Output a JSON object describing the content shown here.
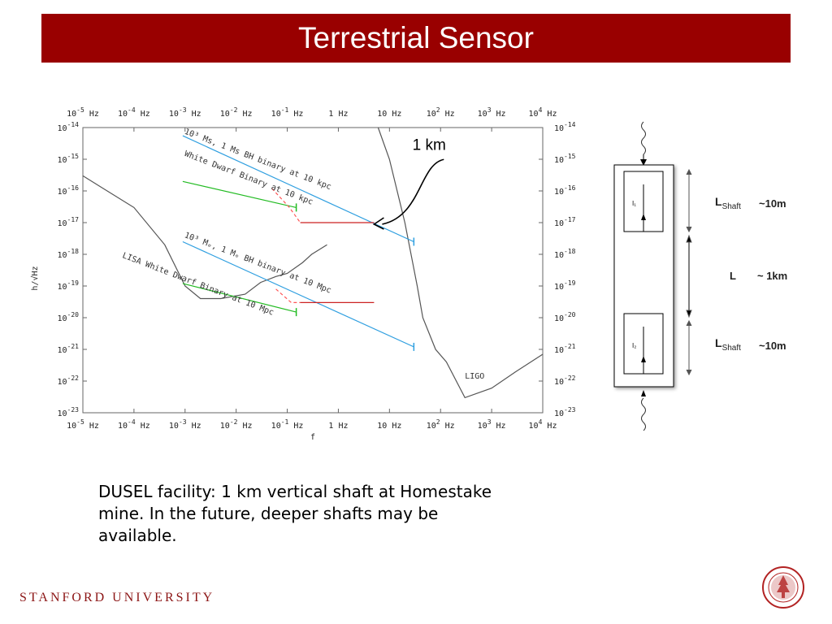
{
  "slide": {
    "title": "Terrestrial Sensor",
    "caption_line1": "DUSEL facility:  1 km vertical shaft at Homestake",
    "caption_line2": "mine.  In the future, deeper shafts may be",
    "caption_line3": "available.",
    "footer": "STANFORD UNIVERSITY",
    "brand_color": "#990000"
  },
  "chart_data": {
    "type": "line",
    "xlabel": "f",
    "ylabel": "h/√Hz",
    "xscale": "log",
    "yscale": "log",
    "xlim": [
      1e-05,
      10000.0
    ],
    "ylim": [
      1e-23,
      1e-14
    ],
    "x_ticks": [
      {
        "base": "10",
        "exp": "-5",
        "unit": "Hz"
      },
      {
        "base": "10",
        "exp": "-4",
        "unit": "Hz"
      },
      {
        "base": "10",
        "exp": "-3",
        "unit": "Hz"
      },
      {
        "base": "10",
        "exp": "-2",
        "unit": "Hz"
      },
      {
        "base": "10",
        "exp": "-1",
        "unit": "Hz"
      },
      {
        "base": "1",
        "exp": "",
        "unit": "Hz"
      },
      {
        "base": "10",
        "exp": "",
        "unit": "Hz"
      },
      {
        "base": "10",
        "exp": "2",
        "unit": "Hz"
      },
      {
        "base": "10",
        "exp": "3",
        "unit": "Hz"
      },
      {
        "base": "10",
        "exp": "4",
        "unit": "Hz"
      }
    ],
    "y_ticks": [
      {
        "base": "10",
        "exp": "-14"
      },
      {
        "base": "10",
        "exp": "-15"
      },
      {
        "base": "10",
        "exp": "-16"
      },
      {
        "base": "10",
        "exp": "-17"
      },
      {
        "base": "10",
        "exp": "-18"
      },
      {
        "base": "10",
        "exp": "-19"
      },
      {
        "base": "10",
        "exp": "-20"
      },
      {
        "base": "10",
        "exp": "-21"
      },
      {
        "base": "10",
        "exp": "-22"
      },
      {
        "base": "10",
        "exp": "-23"
      }
    ],
    "series": [
      {
        "name": "LISA",
        "color": "#555555",
        "style": "solid",
        "x": [
          1e-05,
          0.0001,
          0.0004,
          0.001,
          0.002,
          0.005,
          0.015,
          0.03,
          0.06,
          0.1,
          0.2,
          0.3,
          0.6
        ],
        "y": [
          3e-16,
          3e-17,
          2e-18,
          1e-19,
          4e-20,
          4e-20,
          5.5e-20,
          1.3e-19,
          2e-19,
          2.5e-19,
          5.5e-19,
          1e-18,
          2e-18
        ]
      },
      {
        "name": "LIGO",
        "color": "#555555",
        "style": "solid",
        "x": [
          6,
          10,
          20,
          35,
          45,
          80,
          130,
          300,
          1000,
          3000,
          10000
        ],
        "y": [
          1e-14,
          1e-15,
          1e-17,
          1e-19,
          1e-20,
          1e-21,
          4e-22,
          3e-23,
          6e-23,
          2e-22,
          7e-22
        ]
      },
      {
        "name": "",
        "color": "#2f9fe0",
        "style": "solid",
        "x": [
          0.0009,
          30
        ],
        "y": [
          5.5e-15,
          2.5e-18
        ]
      },
      {
        "name": "",
        "color": "#2f9fe0",
        "style": "solid",
        "x": [
          0.0009,
          30
        ],
        "y": [
          2.5e-18,
          1.2e-21
        ]
      },
      {
        "name": "",
        "color": "#22bb22",
        "style": "solid",
        "x": [
          0.0009,
          0.15
        ],
        "y": [
          2e-16,
          3e-17
        ]
      },
      {
        "name": "",
        "color": "#22bb22",
        "style": "solid",
        "x": [
          0.0009,
          0.15
        ],
        "y": [
          1.2e-19,
          1.5e-20
        ]
      },
      {
        "name": "",
        "color": "#ff5555",
        "style": "dashed",
        "x": [
          0.05,
          0.11,
          0.18
        ],
        "y": [
          1.2e-16,
          3e-17,
          1e-17
        ]
      },
      {
        "name": "",
        "color": "#cc2222",
        "style": "solid",
        "x": [
          0.18,
          5
        ],
        "y": [
          1e-17,
          1e-17
        ]
      },
      {
        "name": "",
        "color": "#ff5555",
        "style": "dashed",
        "x": [
          0.06,
          0.12,
          0.18
        ],
        "y": [
          8e-20,
          3e-20,
          3e-20
        ]
      },
      {
        "name": "",
        "color": "#cc2222",
        "style": "solid",
        "x": [
          0.18,
          5
        ],
        "y": [
          3e-20,
          3e-20
        ]
      }
    ],
    "annotations": [
      {
        "text": "10³ Ms, 1 Ms BH binary at 10 kpc",
        "x": 0.00095,
        "y": 6.5e-15,
        "color": "#333333"
      },
      {
        "text": "White Dwarf Binary at 10 kpc",
        "x": 0.00095,
        "y": 1.3e-15,
        "color": "#333333"
      },
      {
        "text": "10³ Mₑ, 1 Mₑ BH binary at 10 Mpc",
        "x": 0.00095,
        "y": 3.5e-18,
        "color": "#333333"
      },
      {
        "text": "LISA White Dwarf Binary at 10 Mpc",
        "x": 5.8e-05,
        "y": 8e-19,
        "color": "#333333"
      },
      {
        "text": "LIGO",
        "x": 300,
        "y": 1.2e-22,
        "color": "#333333"
      }
    ],
    "callout": {
      "text": "1 km",
      "x": 60,
      "y": 2e-15,
      "arrow_to": {
        "x": 5,
        "y": 1e-17
      }
    }
  },
  "shaft_diagram": {
    "upper_sensor_label": "I₁",
    "lower_sensor_label": "I₂",
    "l_shaft_1": "L",
    "l_shaft_1_sub": "Shaft",
    "l_shaft_1_value": "~10m",
    "l_label": "L",
    "l_value": "~ 1km",
    "l_shaft_2": "L",
    "l_shaft_2_sub": "Shaft",
    "l_shaft_2_value": "~10m"
  }
}
